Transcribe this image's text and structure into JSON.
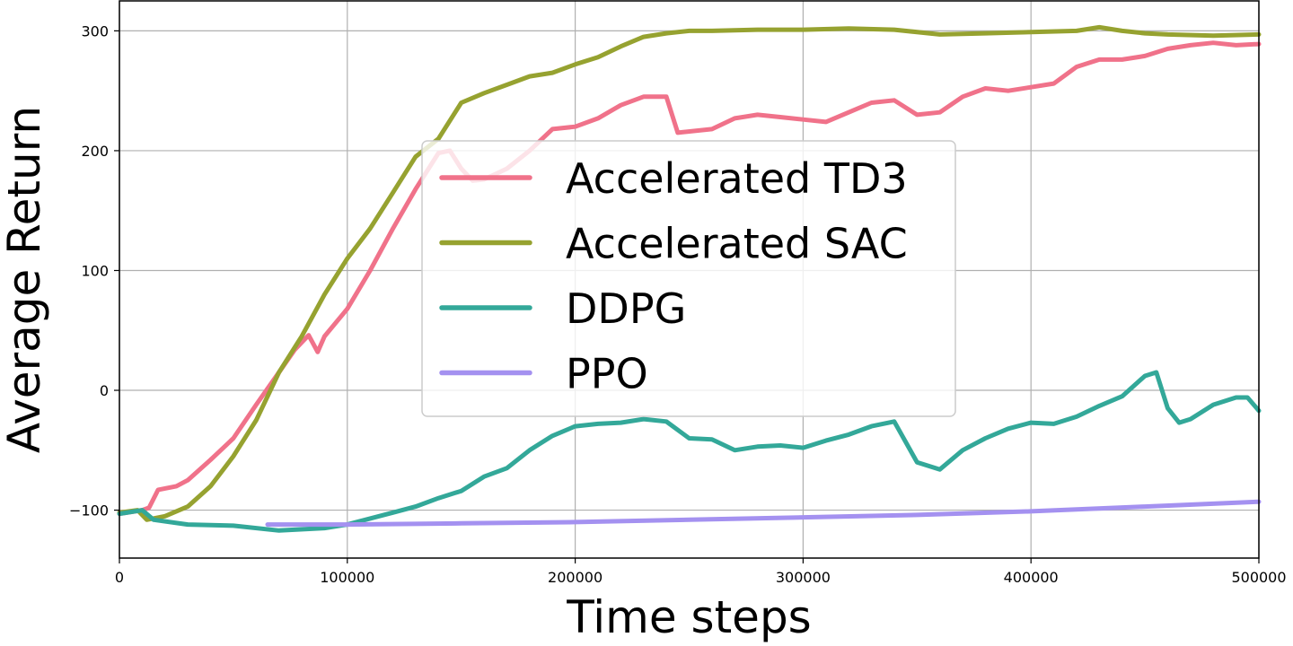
{
  "chart_data": {
    "type": "line",
    "title": "",
    "xlabel": "Time steps",
    "ylabel": "Average Return",
    "xlim": [
      0,
      500000
    ],
    "ylim": [
      -140,
      325
    ],
    "xticks": [
      0,
      100000,
      200000,
      300000,
      400000,
      500000
    ],
    "xtick_labels": [
      "0",
      "100000",
      "200000",
      "300000",
      "400000",
      "500000"
    ],
    "yticks": [
      -100,
      0,
      100,
      200,
      300
    ],
    "ytick_labels": [
      "−100",
      "0",
      "100",
      "200",
      "300"
    ],
    "grid": true,
    "legend_position": "center",
    "series": [
      {
        "name": "Accelerated TD3",
        "color": "#f0728a",
        "points": [
          [
            0,
            -103
          ],
          [
            10000,
            -100
          ],
          [
            13000,
            -98
          ],
          [
            17000,
            -83
          ],
          [
            25000,
            -80
          ],
          [
            30000,
            -75
          ],
          [
            40000,
            -58
          ],
          [
            50000,
            -40
          ],
          [
            60000,
            -12
          ],
          [
            70000,
            15
          ],
          [
            77000,
            34
          ],
          [
            83000,
            46
          ],
          [
            87000,
            32
          ],
          [
            90000,
            45
          ],
          [
            100000,
            68
          ],
          [
            110000,
            100
          ],
          [
            120000,
            135
          ],
          [
            130000,
            168
          ],
          [
            140000,
            198
          ],
          [
            145000,
            200
          ],
          [
            150000,
            185
          ],
          [
            155000,
            175
          ],
          [
            160000,
            176
          ],
          [
            170000,
            185
          ],
          [
            180000,
            200
          ],
          [
            190000,
            218
          ],
          [
            200000,
            220
          ],
          [
            210000,
            227
          ],
          [
            220000,
            238
          ],
          [
            230000,
            245
          ],
          [
            240000,
            245
          ],
          [
            245000,
            215
          ],
          [
            260000,
            218
          ],
          [
            270000,
            227
          ],
          [
            280000,
            230
          ],
          [
            290000,
            228
          ],
          [
            300000,
            226
          ],
          [
            310000,
            224
          ],
          [
            320000,
            232
          ],
          [
            330000,
            240
          ],
          [
            340000,
            242
          ],
          [
            350000,
            230
          ],
          [
            360000,
            232
          ],
          [
            370000,
            245
          ],
          [
            380000,
            252
          ],
          [
            390000,
            250
          ],
          [
            400000,
            253
          ],
          [
            410000,
            256
          ],
          [
            420000,
            270
          ],
          [
            430000,
            276
          ],
          [
            440000,
            276
          ],
          [
            450000,
            279
          ],
          [
            460000,
            285
          ],
          [
            470000,
            288
          ],
          [
            480000,
            290
          ],
          [
            490000,
            288
          ],
          [
            500000,
            289
          ]
        ]
      },
      {
        "name": "Accelerated SAC",
        "color": "#96a230",
        "points": [
          [
            0,
            -102
          ],
          [
            8000,
            -100
          ],
          [
            12000,
            -108
          ],
          [
            20000,
            -105
          ],
          [
            30000,
            -97
          ],
          [
            40000,
            -80
          ],
          [
            50000,
            -55
          ],
          [
            60000,
            -25
          ],
          [
            70000,
            15
          ],
          [
            80000,
            45
          ],
          [
            90000,
            80
          ],
          [
            100000,
            110
          ],
          [
            110000,
            135
          ],
          [
            120000,
            165
          ],
          [
            130000,
            195
          ],
          [
            140000,
            210
          ],
          [
            150000,
            240
          ],
          [
            160000,
            248
          ],
          [
            170000,
            255
          ],
          [
            180000,
            262
          ],
          [
            190000,
            265
          ],
          [
            200000,
            272
          ],
          [
            210000,
            278
          ],
          [
            220000,
            287
          ],
          [
            230000,
            295
          ],
          [
            240000,
            298
          ],
          [
            250000,
            300
          ],
          [
            260000,
            300
          ],
          [
            280000,
            301
          ],
          [
            300000,
            301
          ],
          [
            320000,
            302
          ],
          [
            340000,
            301
          ],
          [
            360000,
            297
          ],
          [
            380000,
            298
          ],
          [
            400000,
            299
          ],
          [
            420000,
            300
          ],
          [
            430000,
            303
          ],
          [
            440000,
            300
          ],
          [
            450000,
            298
          ],
          [
            460000,
            297
          ],
          [
            480000,
            296
          ],
          [
            500000,
            297
          ]
        ]
      },
      {
        "name": "DDPG",
        "color": "#33a899",
        "points": [
          [
            0,
            -103
          ],
          [
            10000,
            -100
          ],
          [
            15000,
            -108
          ],
          [
            30000,
            -112
          ],
          [
            50000,
            -113
          ],
          [
            70000,
            -117
          ],
          [
            90000,
            -115
          ],
          [
            100000,
            -112
          ],
          [
            110000,
            -107
          ],
          [
            120000,
            -102
          ],
          [
            130000,
            -97
          ],
          [
            140000,
            -90
          ],
          [
            150000,
            -84
          ],
          [
            160000,
            -72
          ],
          [
            170000,
            -65
          ],
          [
            180000,
            -50
          ],
          [
            190000,
            -38
          ],
          [
            200000,
            -30
          ],
          [
            210000,
            -28
          ],
          [
            220000,
            -27
          ],
          [
            230000,
            -24
          ],
          [
            240000,
            -26
          ],
          [
            250000,
            -40
          ],
          [
            260000,
            -41
          ],
          [
            270000,
            -50
          ],
          [
            280000,
            -47
          ],
          [
            290000,
            -46
          ],
          [
            300000,
            -48
          ],
          [
            310000,
            -42
          ],
          [
            320000,
            -37
          ],
          [
            330000,
            -30
          ],
          [
            340000,
            -26
          ],
          [
            350000,
            -60
          ],
          [
            360000,
            -66
          ],
          [
            370000,
            -50
          ],
          [
            380000,
            -40
          ],
          [
            390000,
            -32
          ],
          [
            400000,
            -27
          ],
          [
            410000,
            -28
          ],
          [
            420000,
            -22
          ],
          [
            430000,
            -13
          ],
          [
            440000,
            -5
          ],
          [
            450000,
            12
          ],
          [
            455000,
            15
          ],
          [
            460000,
            -15
          ],
          [
            465000,
            -27
          ],
          [
            470000,
            -24
          ],
          [
            480000,
            -12
          ],
          [
            490000,
            -6
          ],
          [
            495000,
            -6
          ],
          [
            500000,
            -17
          ]
        ]
      },
      {
        "name": "PPO",
        "color": "#a491f0",
        "points": [
          [
            65000,
            -112
          ],
          [
            100000,
            -112
          ],
          [
            150000,
            -111
          ],
          [
            200000,
            -110
          ],
          [
            250000,
            -108
          ],
          [
            300000,
            -106
          ],
          [
            350000,
            -104
          ],
          [
            400000,
            -101
          ],
          [
            450000,
            -97
          ],
          [
            500000,
            -93
          ]
        ]
      }
    ]
  }
}
